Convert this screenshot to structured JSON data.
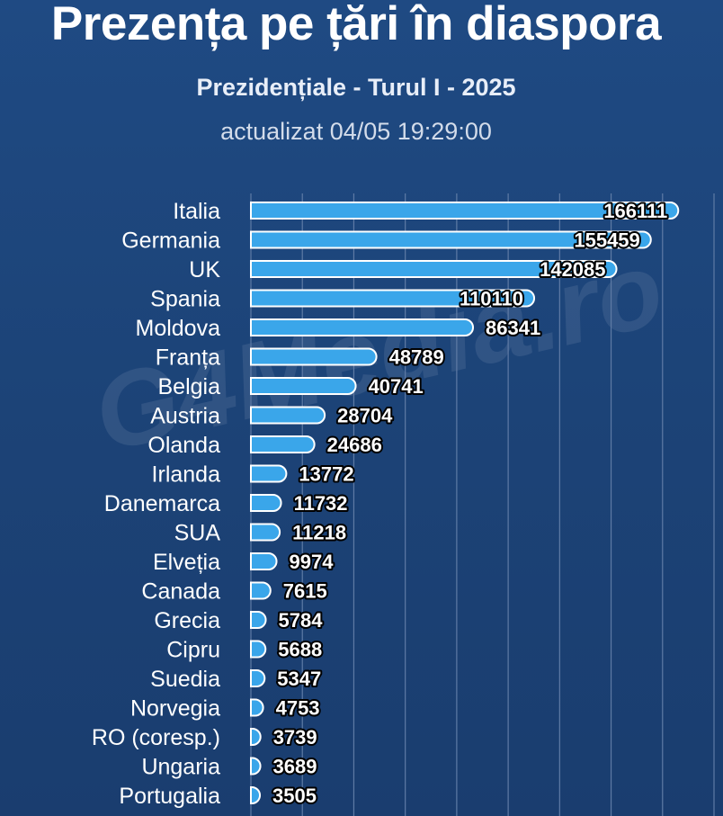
{
  "header": {
    "title": "Prezența pe țări în diaspora",
    "subtitle": "Prezidențiale - Turul I - 2025",
    "updated": "actualizat 04/05 19:29:00"
  },
  "watermark": {
    "text": "G4Media.ro"
  },
  "colors": {
    "background": "#1d4478",
    "bar": "#3aa6ea",
    "bar_edge": "#ffffff",
    "grid": "#5f7ba5",
    "label_text": "#ffffff",
    "value_text": "#ffffff",
    "value_outline": "#000000"
  },
  "chart_data": {
    "type": "bar",
    "orientation": "horizontal",
    "title": "Prezența pe țări în diaspora",
    "subtitle": "Prezidențiale - Turul I - 2025",
    "xlim": [
      0,
      180000
    ],
    "grid": true,
    "categories": [
      "Italia",
      "Germania",
      "UK",
      "Spania",
      "Moldova",
      "Franța",
      "Belgia",
      "Austria",
      "Olanda",
      "Irlanda",
      "Danemarca",
      "SUA",
      "Elveția",
      "Canada",
      "Grecia",
      "Cipru",
      "Suedia",
      "Norvegia",
      "RO (coresp.)",
      "Ungaria",
      "Portugalia"
    ],
    "values": [
      166111,
      155459,
      142085,
      110110,
      86341,
      48789,
      40741,
      28704,
      24686,
      13772,
      11732,
      11218,
      9974,
      7615,
      5784,
      5688,
      5347,
      4753,
      3739,
      3689,
      3505
    ],
    "value_labels": [
      "166111",
      "155459",
      "142085",
      "110110",
      "86341",
      "48789",
      "40741",
      "28704",
      "24686",
      "13772",
      "11732",
      "11218",
      "9974",
      "7615",
      "5784",
      "5688",
      "5347",
      "4753",
      "3739",
      "3689",
      "3505"
    ]
  }
}
